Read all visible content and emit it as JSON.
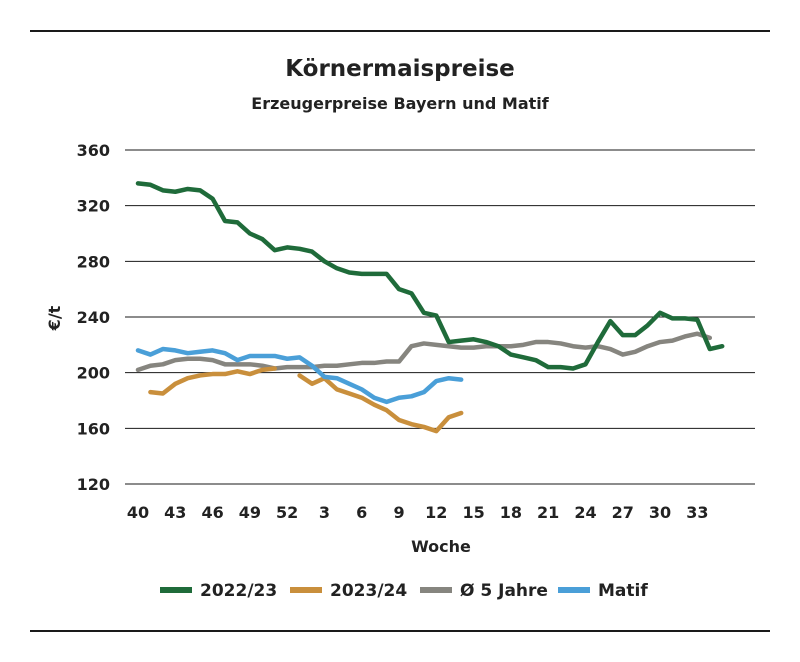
{
  "chart_data": {
    "type": "line",
    "title": "Körnermaispreise",
    "subtitle": "Erzeugerpreise Bayern und Matif",
    "xlabel": "Woche",
    "ylabel": "€/t",
    "ylim": [
      120,
      360
    ],
    "yticks": [
      120,
      160,
      200,
      240,
      280,
      320,
      360
    ],
    "grid": "horizontal",
    "legend": "bottom",
    "xticks": [
      "40",
      "43",
      "46",
      "49",
      "52",
      "3",
      "6",
      "9",
      "12",
      "15",
      "18",
      "21",
      "24",
      "27",
      "30",
      "33"
    ],
    "series": [
      {
        "name": "2022/23",
        "color": "#1f6b3a",
        "values": [
          336,
          335,
          331,
          330,
          332,
          331,
          325,
          309,
          308,
          300,
          296,
          288,
          290,
          289,
          287,
          280,
          275,
          272,
          271,
          271,
          271,
          260,
          257,
          243,
          241,
          222,
          223,
          224,
          222,
          219,
          213,
          211,
          209,
          204,
          204,
          203,
          206,
          222,
          237,
          227,
          227,
          234,
          243,
          239,
          239,
          238,
          217,
          219
        ]
      },
      {
        "name": "2023/24",
        "color": "#c98f3c",
        "values": [
          null,
          186,
          185,
          192,
          196,
          198,
          199,
          199,
          201,
          199,
          202,
          203,
          null,
          198,
          192,
          196,
          188,
          185,
          182,
          177,
          173,
          166,
          163,
          161,
          158,
          168,
          171
        ]
      },
      {
        "name": "Ø 5 Jahre",
        "color": "#86857f",
        "values": [
          202,
          205,
          206,
          209,
          210,
          210,
          209,
          206,
          206,
          206,
          205,
          203,
          204,
          204,
          204,
          205,
          205,
          206,
          207,
          207,
          208,
          208,
          219,
          221,
          220,
          219,
          218,
          218,
          219,
          219,
          219,
          220,
          222,
          222,
          221,
          219,
          218,
          219,
          217,
          213,
          215,
          219,
          222,
          223,
          226,
          228,
          225
        ]
      },
      {
        "name": "Matif",
        "color": "#4a9fd8",
        "values": [
          216,
          213,
          217,
          216,
          214,
          215,
          216,
          214,
          209,
          212,
          212,
          212,
          210,
          211,
          205,
          197,
          196,
          192,
          188,
          182,
          179,
          182,
          183,
          186,
          194,
          196,
          195
        ]
      }
    ]
  }
}
